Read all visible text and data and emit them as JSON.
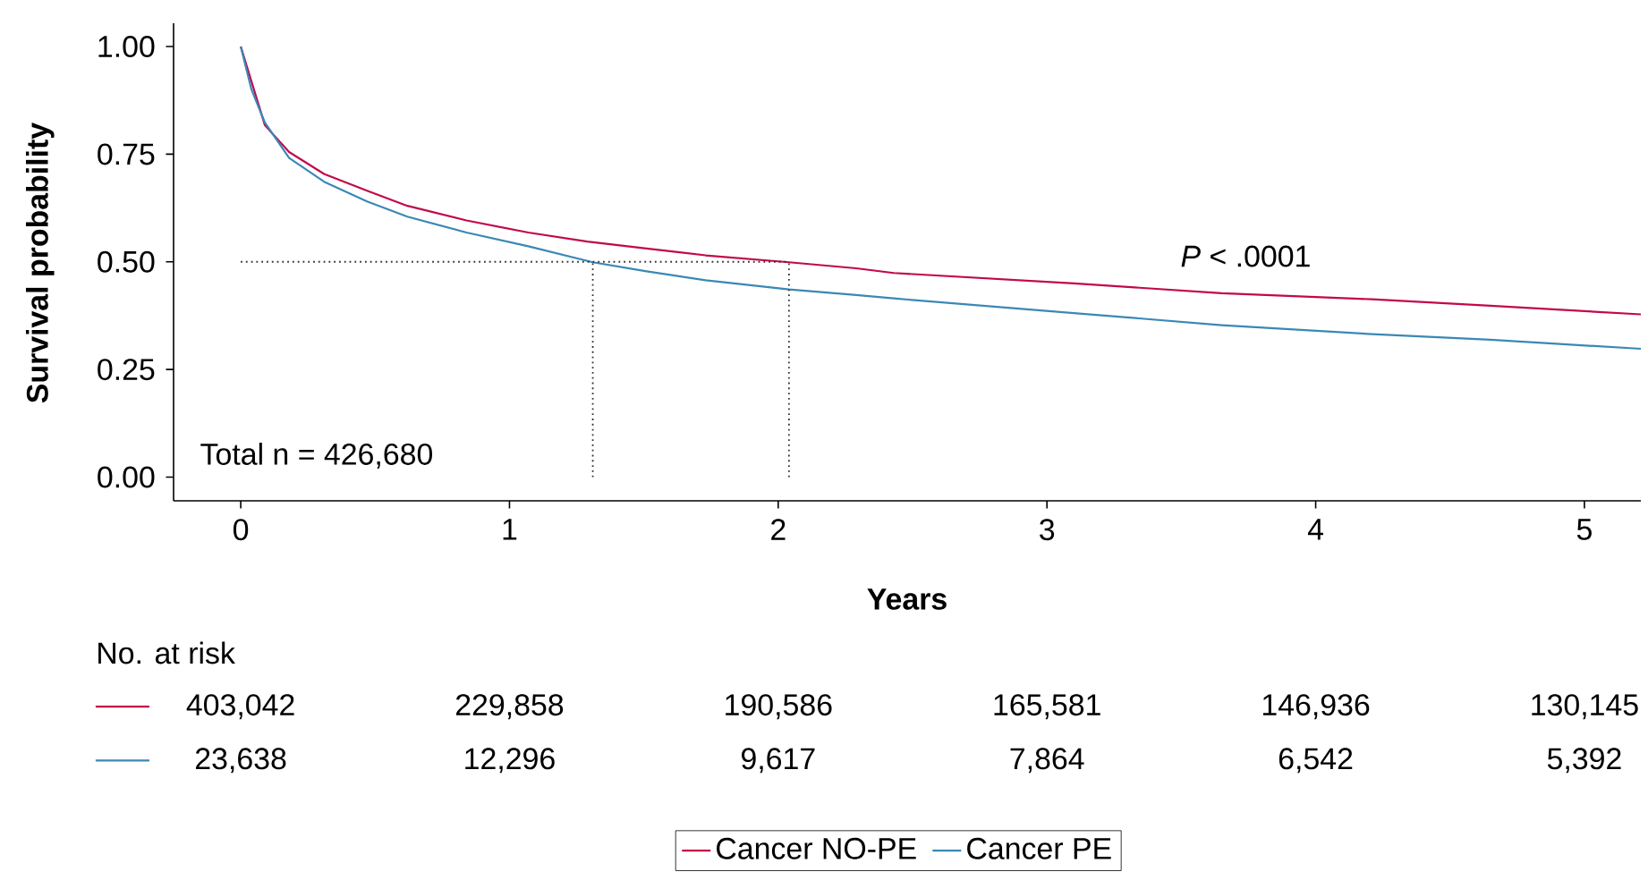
{
  "chart_data": {
    "type": "line",
    "xlabel": "Years",
    "ylabel": "Survival probability",
    "xlim": [
      -0.25,
      5.21
    ],
    "ylim": [
      -0.055,
      1.054
    ],
    "xticks": [
      0,
      1,
      2,
      3,
      4,
      5
    ],
    "yticks": [
      {
        "value": 0,
        "label": "0.00"
      },
      {
        "value": 0.25,
        "label": "0.25"
      },
      {
        "value": 0.5,
        "label": "0.50"
      },
      {
        "value": 0.75,
        "label": "0.75"
      },
      {
        "value": 1,
        "label": "1.00"
      }
    ],
    "series": [
      {
        "name": "Cancer NO-PE",
        "color": "#c2084d",
        "x": [
          0,
          0.09,
          0.18,
          0.31,
          0.47,
          0.62,
          0.84,
          1.07,
          1.29,
          1.51,
          1.73,
          2.04,
          2.29,
          2.43,
          3.1,
          3.65,
          4.21,
          4.65,
          5.21
        ],
        "values": [
          1.0,
          0.817,
          0.755,
          0.704,
          0.665,
          0.63,
          0.596,
          0.568,
          0.547,
          0.531,
          0.515,
          0.499,
          0.485,
          0.474,
          0.45,
          0.427,
          0.413,
          0.398,
          0.378
        ]
      },
      {
        "name": "Cancer PE",
        "color": "#3a88b5",
        "x": [
          0,
          0.04,
          0.09,
          0.18,
          0.31,
          0.47,
          0.62,
          0.84,
          1.07,
          1.31,
          1.51,
          1.73,
          2.04,
          2.29,
          2.43,
          3.1,
          3.65,
          4.21,
          4.65,
          5.21
        ],
        "values": [
          1.0,
          0.9,
          0.823,
          0.741,
          0.686,
          0.64,
          0.605,
          0.568,
          0.536,
          0.499,
          0.478,
          0.457,
          0.436,
          0.423,
          0.415,
          0.381,
          0.353,
          0.332,
          0.319,
          0.298
        ]
      }
    ],
    "ref_lines": [
      {
        "axis": "y",
        "value": 0.5,
        "color": "#333333",
        "line_style": "dotted"
      },
      {
        "axis": "x",
        "value": 1.31,
        "color": "#333333",
        "line_style": "dotted"
      },
      {
        "axis": "x",
        "value": 2.04,
        "color": "#333333",
        "line_style": "dotted"
      }
    ],
    "annotations": [
      "*P* < .0001",
      "Total n = 426,680",
      "No. at risk",
      "403,042",
      "229,858",
      "190,586",
      "165,581",
      "146,936",
      "130,145",
      "23,638",
      "12,296",
      "9,617",
      "7,864",
      "6,542",
      "5,392"
    ],
    "legend": "bottom"
  }
}
